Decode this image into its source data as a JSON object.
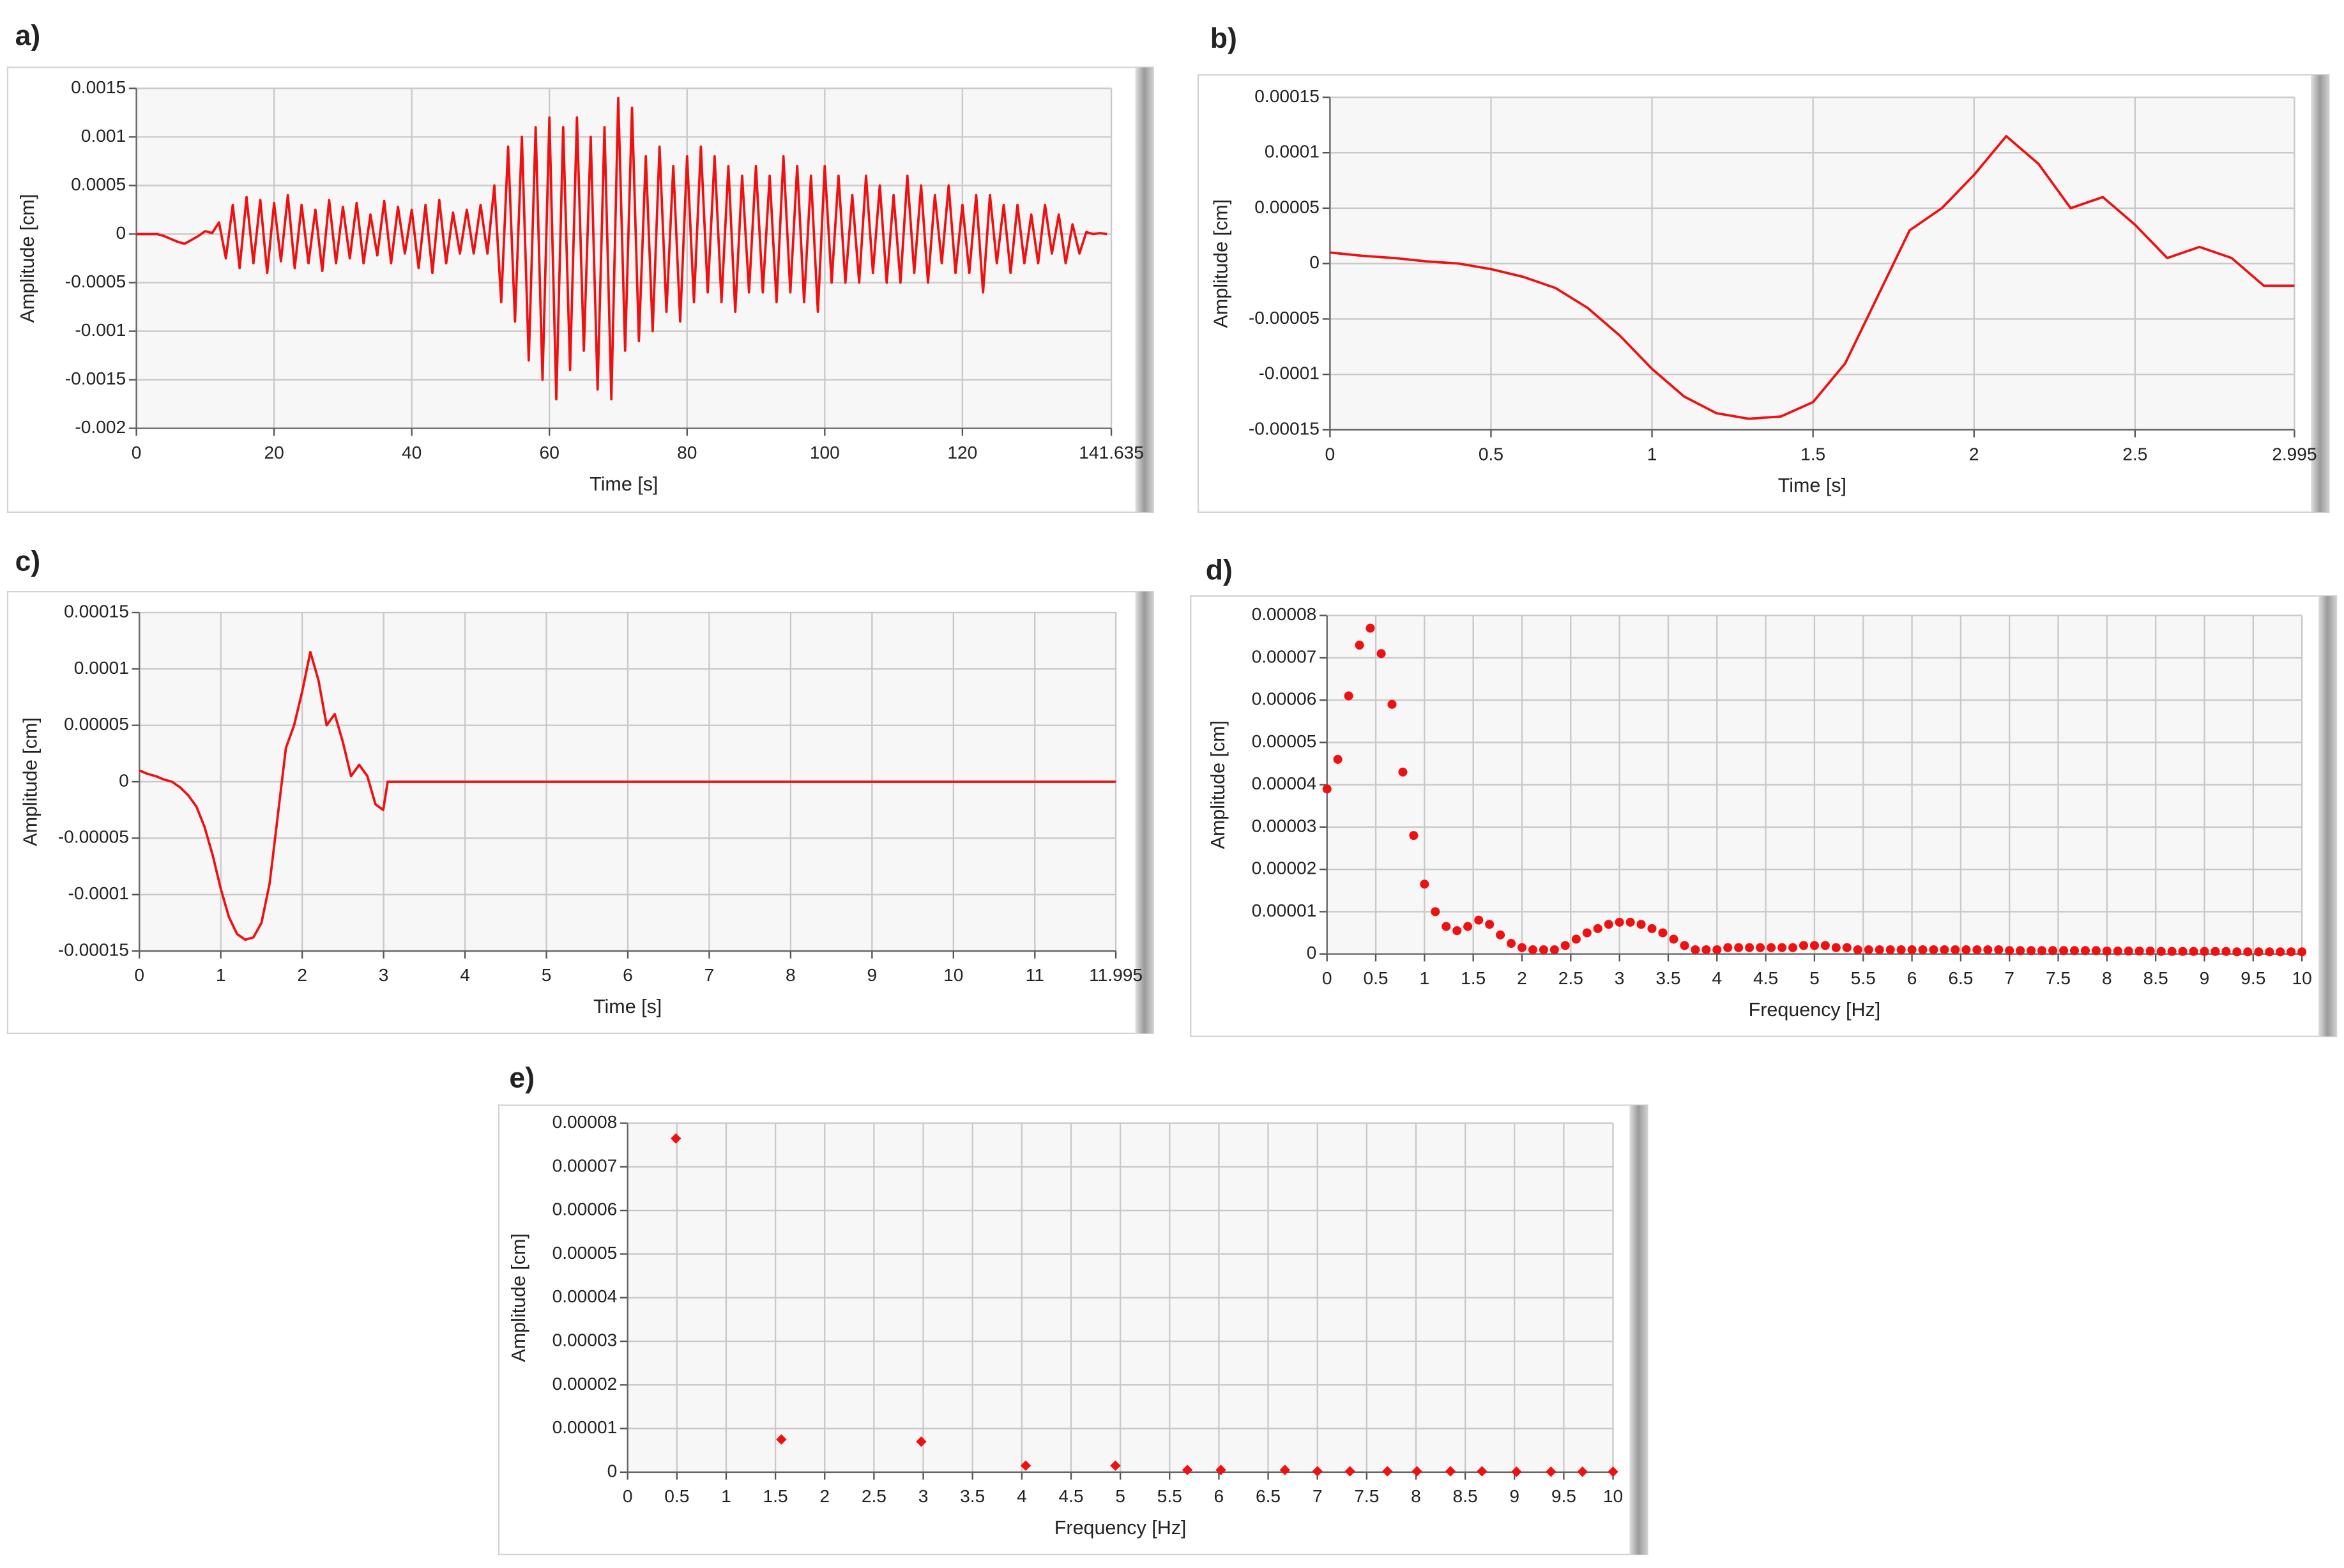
{
  "chart_data": [
    {
      "type": "line",
      "label": "a)",
      "xlabel": "Time [s]",
      "ylabel": "Amplitude [cm]",
      "color": "#ee1111",
      "grid": true,
      "xlim": [
        0,
        141.635
      ],
      "xticks": [
        0,
        20,
        40,
        60,
        80,
        100,
        120,
        141.635
      ],
      "ylim": [
        -0.002,
        0.0015
      ],
      "yticks": [
        -0.002,
        -0.0015,
        -0.001,
        -0.0005,
        0,
        0.0005,
        0.001,
        0.0015
      ],
      "x": [
        0,
        1,
        2,
        3,
        4,
        5,
        6,
        7,
        8,
        9,
        10,
        11,
        12,
        13,
        14,
        15,
        16,
        17,
        18,
        19,
        20,
        21,
        22,
        23,
        24,
        25,
        26,
        27,
        28,
        29,
        30,
        31,
        32,
        33,
        34,
        35,
        36,
        37,
        38,
        39,
        40,
        41,
        42,
        43,
        44,
        45,
        46,
        47,
        48,
        49,
        50,
        51,
        52,
        53,
        54,
        55,
        56,
        57,
        58,
        59,
        60,
        61,
        62,
        63,
        64,
        65,
        66,
        67,
        68,
        69,
        70,
        71,
        72,
        73,
        74,
        75,
        76,
        77,
        78,
        79,
        80,
        81,
        82,
        83,
        84,
        85,
        86,
        87,
        88,
        89,
        90,
        91,
        92,
        93,
        94,
        95,
        96,
        97,
        98,
        99,
        100,
        101,
        102,
        103,
        104,
        105,
        106,
        107,
        108,
        109,
        110,
        111,
        112,
        113,
        114,
        115,
        116,
        117,
        118,
        119,
        120,
        121,
        122,
        123,
        124,
        125,
        126,
        127,
        128,
        129,
        130,
        131,
        132,
        133,
        134,
        135,
        136,
        137,
        138,
        139,
        140,
        141
      ],
      "values": [
        0,
        0,
        0,
        0,
        -2e-05,
        -5e-05,
        -8e-05,
        -0.0001,
        -6e-05,
        -2e-05,
        3e-05,
        1e-05,
        0.00012,
        -0.00025,
        0.0003,
        -0.00035,
        0.00038,
        -0.0003,
        0.00035,
        -0.0004,
        0.00032,
        -0.00028,
        0.0004,
        -0.00035,
        0.0003,
        -0.0003,
        0.00025,
        -0.00038,
        0.00035,
        -0.0003,
        0.00028,
        -0.00025,
        0.00032,
        -0.0003,
        0.0002,
        -0.00022,
        0.00034,
        -0.0003,
        0.00028,
        -0.0002,
        0.00025,
        -0.00035,
        0.0003,
        -0.0004,
        0.00035,
        -0.0003,
        0.00022,
        -0.0002,
        0.00025,
        -0.0002,
        0.0003,
        -0.0002,
        0.0005,
        -0.0007,
        0.0009,
        -0.0009,
        0.001,
        -0.0013,
        0.0011,
        -0.0015,
        0.0012,
        -0.0017,
        0.0011,
        -0.0014,
        0.0012,
        -0.0012,
        0.001,
        -0.0016,
        0.0011,
        -0.0017,
        0.0014,
        -0.0012,
        0.0013,
        -0.0011,
        0.0008,
        -0.001,
        0.0009,
        -0.0008,
        0.0007,
        -0.0009,
        0.0008,
        -0.0007,
        0.0009,
        -0.0006,
        0.0008,
        -0.0007,
        0.0007,
        -0.0008,
        0.0006,
        -0.0006,
        0.0007,
        -0.0006,
        0.0006,
        -0.0007,
        0.0008,
        -0.0006,
        0.0007,
        -0.0007,
        0.0006,
        -0.0008,
        0.0007,
        -0.0005,
        0.0006,
        -0.0005,
        0.0004,
        -0.0005,
        0.0006,
        -0.0004,
        0.0005,
        -0.0005,
        0.0004,
        -0.0005,
        0.0006,
        -0.0004,
        0.0005,
        -0.0005,
        0.0004,
        -0.0003,
        0.0005,
        -0.0004,
        0.0003,
        -0.0004,
        0.0004,
        -0.0006,
        0.0004,
        -0.0003,
        0.0003,
        -0.0004,
        0.0003,
        -0.0003,
        0.0002,
        -0.0003,
        0.0003,
        -0.0002,
        0.0002,
        -0.0003,
        0.0001,
        -0.0002,
        2e-05,
        0,
        1e-05,
        0
      ]
    },
    {
      "type": "line",
      "label": "b)",
      "xlabel": "Time [s]",
      "ylabel": "Amplitude [cm]",
      "color": "#ee1111",
      "grid": true,
      "xlim": [
        0,
        2.995
      ],
      "xticks": [
        0,
        0.5,
        1,
        1.5,
        2,
        2.5,
        2.995
      ],
      "ylim": [
        -0.00015,
        0.00015
      ],
      "yticks": [
        -0.00015,
        -0.0001,
        -5e-05,
        0,
        5e-05,
        0.0001,
        0.00015
      ],
      "x": [
        0,
        0.1,
        0.2,
        0.3,
        0.4,
        0.5,
        0.6,
        0.7,
        0.8,
        0.9,
        1,
        1.1,
        1.2,
        1.3,
        1.4,
        1.5,
        1.6,
        1.7,
        1.8,
        1.9,
        2,
        2.1,
        2.2,
        2.3,
        2.4,
        2.5,
        2.6,
        2.7,
        2.8,
        2.9,
        2.995
      ],
      "values": [
        1e-05,
        7e-06,
        5e-06,
        2e-06,
        0,
        -5e-06,
        -1.2e-05,
        -2.2e-05,
        -4e-05,
        -6.5e-05,
        -9.5e-05,
        -0.00012,
        -0.000135,
        -0.00014,
        -0.000138,
        -0.000125,
        -9e-05,
        -3e-05,
        3e-05,
        5e-05,
        8e-05,
        0.000115,
        9e-05,
        5e-05,
        6e-05,
        3.5e-05,
        5e-06,
        1.5e-05,
        5e-06,
        -2e-05,
        -2e-05
      ]
    },
    {
      "type": "line",
      "label": "c)",
      "xlabel": "Time [s]",
      "ylabel": "Amplitude [cm]",
      "color": "#ee1111",
      "grid": true,
      "xlim": [
        0,
        11.995
      ],
      "xticks": [
        0,
        1,
        2,
        3,
        4,
        5,
        6,
        7,
        8,
        9,
        10,
        11,
        11.995
      ],
      "ylim": [
        -0.00015,
        0.00015
      ],
      "yticks": [
        -0.00015,
        -0.0001,
        -5e-05,
        0,
        5e-05,
        0.0001,
        0.00015
      ],
      "x": [
        0,
        0.1,
        0.2,
        0.3,
        0.4,
        0.5,
        0.6,
        0.7,
        0.8,
        0.9,
        1,
        1.1,
        1.2,
        1.3,
        1.4,
        1.5,
        1.6,
        1.7,
        1.8,
        1.9,
        2,
        2.1,
        2.2,
        2.3,
        2.4,
        2.5,
        2.6,
        2.7,
        2.8,
        2.9,
        2.995,
        3.05,
        11.995
      ],
      "values": [
        1e-05,
        7e-06,
        5e-06,
        2e-06,
        0,
        -5e-06,
        -1.2e-05,
        -2.2e-05,
        -4e-05,
        -6.5e-05,
        -9.5e-05,
        -0.00012,
        -0.000135,
        -0.00014,
        -0.000138,
        -0.000125,
        -9e-05,
        -3e-05,
        3e-05,
        5e-05,
        8e-05,
        0.000115,
        9e-05,
        5e-05,
        6e-05,
        3.5e-05,
        5e-06,
        1.5e-05,
        5e-06,
        -2e-05,
        -2.5e-05,
        0,
        0
      ]
    },
    {
      "type": "scatter",
      "label": "d)",
      "xlabel": "Frequency [Hz]",
      "ylabel": "Amplitude [cm]",
      "color": "#ee1111",
      "marker": "circle",
      "grid": true,
      "xlim": [
        0,
        10
      ],
      "xticks": [
        0,
        0.5,
        1,
        1.5,
        2,
        2.5,
        3,
        3.5,
        4,
        4.5,
        5,
        5.5,
        6,
        6.5,
        7,
        7.5,
        8,
        8.5,
        9,
        9.5,
        10
      ],
      "ylim": [
        0,
        8e-05
      ],
      "yticks": [
        0,
        1e-05,
        2e-05,
        3e-05,
        4e-05,
        5e-05,
        6e-05,
        7e-05,
        8e-05
      ],
      "x": [
        0,
        0.111,
        0.222,
        0.333,
        0.444,
        0.556,
        0.667,
        0.778,
        0.889,
        1,
        1.111,
        1.222,
        1.333,
        1.444,
        1.556,
        1.667,
        1.778,
        1.889,
        2,
        2.111,
        2.222,
        2.333,
        2.444,
        2.556,
        2.667,
        2.778,
        2.889,
        3,
        3.111,
        3.222,
        3.333,
        3.444,
        3.556,
        3.667,
        3.778,
        3.889,
        4,
        4.111,
        4.222,
        4.333,
        4.444,
        4.556,
        4.667,
        4.778,
        4.889,
        5,
        5.111,
        5.222,
        5.333,
        5.444,
        5.556,
        5.667,
        5.778,
        5.889,
        6,
        6.111,
        6.222,
        6.333,
        6.444,
        6.556,
        6.667,
        6.778,
        6.889,
        7,
        7.111,
        7.222,
        7.333,
        7.444,
        7.556,
        7.667,
        7.778,
        7.889,
        8,
        8.111,
        8.222,
        8.333,
        8.444,
        8.556,
        8.667,
        8.778,
        8.889,
        9,
        9.111,
        9.222,
        9.333,
        9.444,
        9.556,
        9.667,
        9.778,
        9.889,
        10
      ],
      "values": [
        3.9e-05,
        4.6e-05,
        6.1e-05,
        7.3e-05,
        7.7e-05,
        7.1e-05,
        5.9e-05,
        4.3e-05,
        2.8e-05,
        1.65e-05,
        1e-05,
        6.5e-06,
        5.5e-06,
        6.5e-06,
        8e-06,
        7e-06,
        4.5e-06,
        2.5e-06,
        1.5e-06,
        1e-06,
        1e-06,
        1e-06,
        2e-06,
        3.5e-06,
        5e-06,
        6e-06,
        7e-06,
        7.5e-06,
        7.5e-06,
        7e-06,
        6e-06,
        5e-06,
        3.5e-06,
        2e-06,
        1e-06,
        1e-06,
        1e-06,
        1.5e-06,
        1.5e-06,
        1.5e-06,
        1.5e-06,
        1.5e-06,
        1.5e-06,
        1.5e-06,
        2e-06,
        2e-06,
        2e-06,
        1.5e-06,
        1.5e-06,
        1e-06,
        1e-06,
        1e-06,
        1e-06,
        1e-06,
        1e-06,
        1e-06,
        1e-06,
        1e-06,
        1e-06,
        1e-06,
        1e-06,
        1e-06,
        1e-06,
        8e-07,
        8e-07,
        8e-07,
        8e-07,
        8e-07,
        8e-07,
        8e-07,
        8e-07,
        8e-07,
        7e-07,
        7e-07,
        7e-07,
        7e-07,
        7e-07,
        6e-07,
        6e-07,
        6e-07,
        6e-07,
        6e-07,
        6e-07,
        6e-07,
        5e-07,
        5e-07,
        5e-07,
        5e-07,
        5e-07,
        5e-07,
        5e-07
      ]
    },
    {
      "type": "scatter",
      "label": "e)",
      "xlabel": "Frequency [Hz]",
      "ylabel": "Amplitude [cm]",
      "color": "#ee1111",
      "marker": "diamond",
      "grid": true,
      "xlim": [
        0,
        10
      ],
      "xticks": [
        0,
        0.5,
        1,
        1.5,
        2,
        2.5,
        3,
        3.5,
        4,
        4.5,
        5,
        5.5,
        6,
        6.5,
        7,
        7.5,
        8,
        8.5,
        9,
        9.5,
        10
      ],
      "ylim": [
        0,
        8e-05
      ],
      "yticks": [
        0,
        1e-05,
        2e-05,
        3e-05,
        4e-05,
        5e-05,
        6e-05,
        7e-05,
        8e-05
      ],
      "x": [
        0.49,
        1.56,
        2.98,
        4.04,
        4.95,
        5.68,
        6.02,
        6.67,
        7,
        7.33,
        7.71,
        8.01,
        8.35,
        8.67,
        9.02,
        9.37,
        9.69,
        10
      ],
      "values": [
        7.65e-05,
        7.5e-06,
        7e-06,
        1.5e-06,
        1.5e-06,
        5e-07,
        5e-07,
        5e-07,
        2e-07,
        2e-07,
        2e-07,
        2e-07,
        2e-07,
        2e-07,
        1e-07,
        1e-07,
        1e-07,
        1e-07
      ]
    }
  ]
}
